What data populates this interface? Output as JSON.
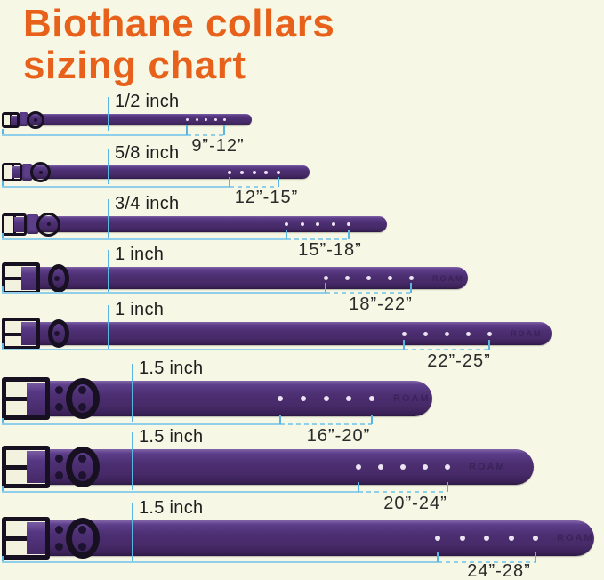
{
  "title": {
    "line1": "Biothane collars",
    "line2": "sizing chart"
  },
  "watermark": "ROAM",
  "rows": [
    {
      "width_label": "1/2 inch",
      "range_label": "9”-12”",
      "holes": 5
    },
    {
      "width_label": "5/8 inch",
      "range_label": "12”-15”",
      "holes": 5
    },
    {
      "width_label": "3/4 inch",
      "range_label": "15”-18”",
      "holes": 5
    },
    {
      "width_label": "1 inch",
      "range_label": "18”-22”",
      "holes": 5
    },
    {
      "width_label": "1 inch",
      "range_label": "22”-25”",
      "holes": 5
    },
    {
      "width_label": "1.5 inch",
      "range_label": "16”-20”",
      "holes": 5
    },
    {
      "width_label": "1.5 inch",
      "range_label": "20”-24”",
      "holes": 5
    },
    {
      "width_label": "1.5 inch",
      "range_label": "24”-28”",
      "holes": 5
    }
  ],
  "chart_data": {
    "type": "table",
    "title": "Biothane collars sizing chart",
    "columns": [
      "Collar width",
      "Fits neck size"
    ],
    "rows": [
      [
        "1/2 inch",
        "9”-12”"
      ],
      [
        "5/8 inch",
        "12”-15”"
      ],
      [
        "3/4 inch",
        "15”-18”"
      ],
      [
        "1 inch",
        "18”-22”"
      ],
      [
        "1 inch",
        "22”-25”"
      ],
      [
        "1.5 inch",
        "16”-20”"
      ],
      [
        "1.5 inch",
        "20”-24”"
      ],
      [
        "1.5 inch",
        "24”-28”"
      ]
    ]
  },
  "colors": {
    "background": "#f7f7e6",
    "title": "#e8611a",
    "strap": "#4a2c6e",
    "hardware": "#171020",
    "measure_line": "#8fcfe9",
    "measure_tick": "#58b6e0",
    "label_text": "#1e1e1e",
    "hole": "#ece4f2"
  }
}
